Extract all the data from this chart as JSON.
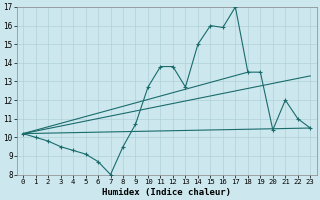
{
  "xlabel": "Humidex (Indice chaleur)",
  "xlim": [
    -0.5,
    23.5
  ],
  "ylim": [
    8,
    17
  ],
  "yticks": [
    8,
    9,
    10,
    11,
    12,
    13,
    14,
    15,
    16,
    17
  ],
  "xticks": [
    0,
    1,
    2,
    3,
    4,
    5,
    6,
    7,
    8,
    9,
    10,
    11,
    12,
    13,
    14,
    15,
    16,
    17,
    18,
    19,
    20,
    21,
    22,
    23
  ],
  "bg_color": "#cce8ee",
  "grid_color": "#b0d0d8",
  "line_color": "#1a6b6b",
  "line1_x": [
    0,
    1,
    2,
    3,
    4,
    5,
    6,
    7,
    8,
    9,
    10,
    11,
    12,
    13,
    14,
    15,
    16,
    17,
    18,
    19,
    20,
    21,
    22,
    23
  ],
  "line1_y": [
    10.2,
    10.0,
    9.8,
    9.5,
    9.3,
    9.1,
    8.7,
    8.0,
    9.5,
    10.7,
    12.7,
    13.8,
    13.8,
    12.7,
    15.0,
    16.0,
    15.9,
    17.0,
    13.5,
    13.5,
    10.4,
    12.0,
    11.0,
    10.5
  ],
  "line2_x": [
    0,
    18
  ],
  "line2_y": [
    10.2,
    13.5
  ],
  "line3_x": [
    0,
    23
  ],
  "line3_y": [
    10.2,
    10.5
  ],
  "line4_x": [
    0,
    23
  ],
  "line4_y": [
    10.2,
    13.3
  ]
}
